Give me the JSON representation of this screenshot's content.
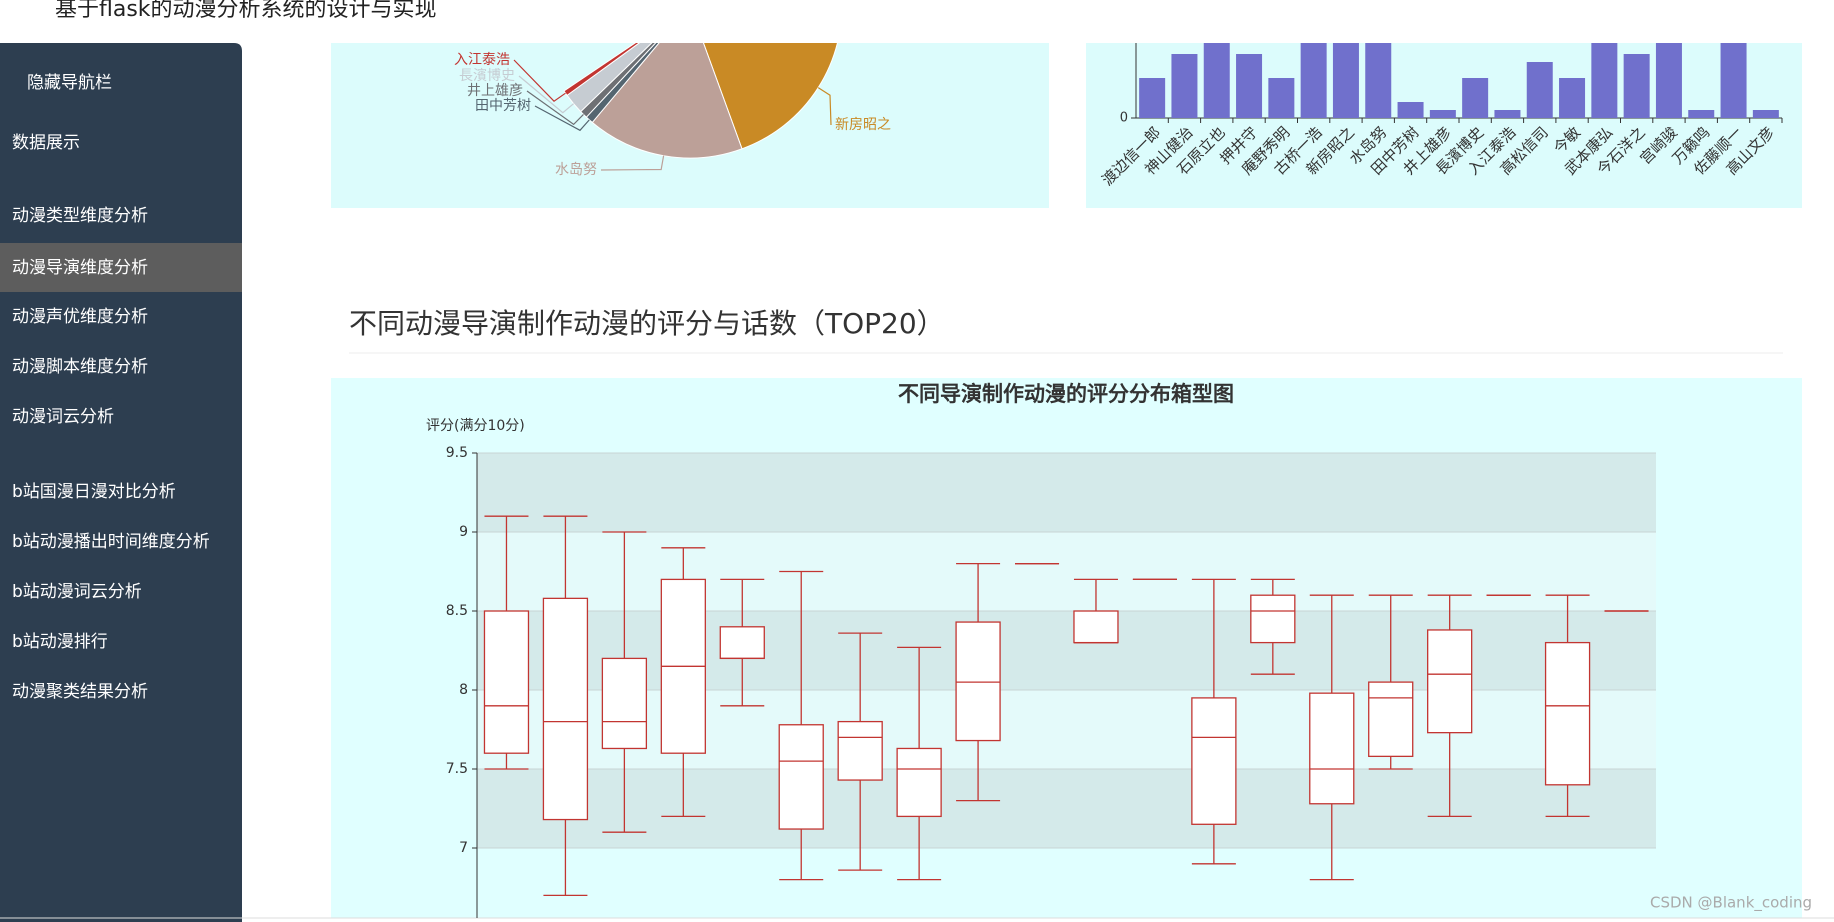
{
  "header": {
    "title": "基于flask的动漫分析系统的设计与实现"
  },
  "sidebar": {
    "items": [
      "隐藏导航栏",
      "数据展示",
      "动漫类型维度分析",
      "动漫导演维度分析",
      "动漫声优维度分析",
      "动漫脚本维度分析",
      "动漫词云分析",
      "b站国漫日漫对比分析",
      "b站动漫播出时间维度分析",
      "b站动漫词云分析",
      "b站动漫排行",
      "动漫聚类结果分析"
    ],
    "active": 3
  },
  "pie_chart": {
    "type": "pie",
    "labels": [
      "新房昭之",
      "水岛努",
      "田中芳树",
      "井上雄彦",
      "長濱博史",
      "入江泰浩"
    ],
    "values": [
      75,
      60,
      3,
      3,
      8,
      2
    ],
    "colors": [
      "#c98a25",
      "#bca098",
      "#546570",
      "#6e7074",
      "#c6ccd2",
      "#c23531"
    ]
  },
  "bar_chart": {
    "type": "bar",
    "categories": [
      "渡边信一郎",
      "神山健治",
      "石原立也",
      "押井守",
      "庵野秀明",
      "古桥一浩",
      "新房昭之",
      "水岛努",
      "田中芳树",
      "井上雄彦",
      "長濱博史",
      "入江泰浩",
      "高松信司",
      "今敏",
      "武本康弘",
      "今石洋之",
      "宫崎骏",
      "万籁鸣",
      "佐藤顺一",
      "高山文彦"
    ],
    "values": [
      5,
      8,
      12,
      8,
      5,
      12,
      12,
      12,
      2,
      1,
      5,
      1,
      7,
      5,
      12,
      8,
      12,
      1,
      12,
      1
    ],
    "color": "#7070cc",
    "ylim": [
      0,
      15
    ],
    "yticks": [
      0
    ]
  },
  "section_title": "不同动漫导演制作动漫的评分与话数（TOP20）",
  "box_chart": {
    "type": "box",
    "title": "不同导演制作动漫的评分分布箱型图",
    "y_label": "评分(满分10分)",
    "ylim": [
      6.5,
      9.5
    ],
    "yticks": [
      7,
      7.5,
      8,
      8.5,
      9,
      9.5
    ],
    "color": "#c23531",
    "boxes": [
      {
        "min": 7.5,
        "q1": 7.6,
        "median": 7.9,
        "q3": 8.5,
        "max": 9.1
      },
      {
        "min": 6.7,
        "q1": 7.18,
        "median": 7.8,
        "q3": 8.58,
        "max": 9.1
      },
      {
        "min": 7.1,
        "q1": 7.63,
        "median": 7.8,
        "q3": 8.2,
        "max": 9.0
      },
      {
        "min": 7.2,
        "q1": 7.6,
        "median": 8.15,
        "q3": 8.7,
        "max": 8.9
      },
      {
        "min": 7.9,
        "q1": 8.2,
        "median": 8.2,
        "q3": 8.4,
        "max": 8.7
      },
      {
        "min": 6.8,
        "q1": 7.12,
        "median": 7.55,
        "q3": 7.78,
        "max": 8.75
      },
      {
        "min": 6.86,
        "q1": 7.43,
        "median": 7.7,
        "q3": 7.8,
        "max": 8.36
      },
      {
        "min": 6.8,
        "q1": 7.2,
        "median": 7.5,
        "q3": 7.63,
        "max": 8.27
      },
      {
        "min": 7.3,
        "q1": 7.68,
        "median": 8.05,
        "q3": 8.43,
        "max": 8.8
      },
      {
        "min": 8.8,
        "q1": 8.8,
        "median": 8.8,
        "q3": 8.8,
        "max": 8.8
      },
      {
        "min": 8.3,
        "q1": 8.3,
        "median": 8.3,
        "q3": 8.5,
        "max": 8.7
      },
      {
        "min": 8.7,
        "q1": 8.7,
        "median": 8.7,
        "q3": 8.7,
        "max": 8.7
      },
      {
        "min": 6.9,
        "q1": 7.15,
        "median": 7.7,
        "q3": 7.95,
        "max": 8.7
      },
      {
        "min": 8.1,
        "q1": 8.3,
        "median": 8.5,
        "q3": 8.6,
        "max": 8.7
      },
      {
        "min": 6.8,
        "q1": 7.28,
        "median": 7.5,
        "q3": 7.98,
        "max": 8.6
      },
      {
        "min": 7.5,
        "q1": 7.58,
        "median": 7.95,
        "q3": 8.05,
        "max": 8.6
      },
      {
        "min": 7.2,
        "q1": 7.73,
        "median": 8.1,
        "q3": 8.38,
        "max": 8.6
      },
      {
        "min": 8.6,
        "q1": 8.6,
        "median": 8.6,
        "q3": 8.6,
        "max": 8.6
      },
      {
        "min": 7.2,
        "q1": 7.4,
        "median": 7.9,
        "q3": 8.3,
        "max": 8.6
      },
      {
        "min": 8.5,
        "q1": 8.5,
        "median": 8.5,
        "q3": 8.5,
        "max": 8.5
      }
    ]
  },
  "watermark": "CSDN @Blank_coding"
}
